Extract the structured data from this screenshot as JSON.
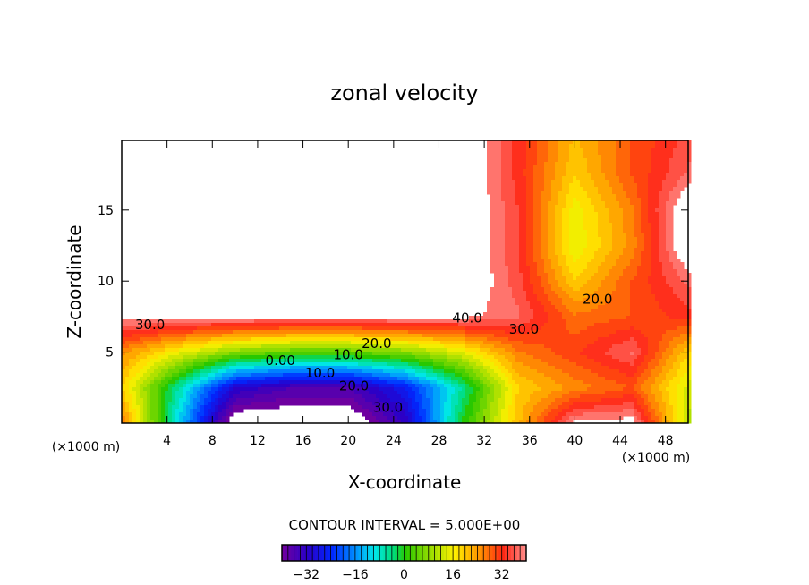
{
  "chart_data": {
    "type": "heatmap",
    "title": "zonal velocity",
    "xlabel": "X-coordinate",
    "ylabel": "Z-coordinate",
    "x_unit_left": "(×1000 m)",
    "x_unit_right": "(×1000 m)",
    "xlim": [
      0,
      50
    ],
    "ylim": [
      0,
      19.9
    ],
    "xticks": [
      4,
      8,
      12,
      16,
      20,
      24,
      28,
      32,
      36,
      40,
      44,
      48
    ],
    "yticks": [
      5,
      10,
      15
    ],
    "contour_interval_label": "CONTOUR INTERVAL = 5.000E+00",
    "colorbar": {
      "range": [
        -40,
        40
      ],
      "ticks": [
        -32,
        -16,
        0,
        16,
        32
      ],
      "tick_labels": [
        "−32",
        "−16",
        "0",
        "16",
        "32"
      ]
    },
    "grid_x": [
      0,
      5,
      10,
      15,
      20,
      25,
      30,
      35,
      40,
      45,
      50
    ],
    "grid_z": [
      0,
      2.5,
      5,
      7.5,
      10,
      12.5,
      15,
      17.5,
      20
    ],
    "values": [
      [
        28,
        -10,
        -45,
        -45,
        -45,
        -32,
        0,
        22,
        41,
        42,
        12
      ],
      [
        20,
        -5,
        -30,
        -35,
        -35,
        -25,
        -5,
        20,
        26,
        30,
        14
      ],
      [
        26,
        16,
        8,
        5,
        5,
        8,
        15,
        27,
        32,
        38,
        20
      ],
      [
        42,
        42,
        42,
        42,
        42,
        42,
        41,
        38,
        28,
        30,
        34
      ],
      [
        45,
        45,
        45,
        45,
        45,
        45,
        45,
        36,
        20,
        30,
        38
      ],
      [
        45,
        45,
        45,
        45,
        45,
        45,
        45,
        35,
        15,
        26,
        45
      ],
      [
        45,
        45,
        45,
        45,
        45,
        45,
        45,
        35,
        16,
        27,
        45
      ],
      [
        45,
        45,
        45,
        45,
        45,
        45,
        45,
        34,
        20,
        30,
        38
      ],
      [
        45,
        45,
        45,
        45,
        45,
        45,
        45,
        34,
        22,
        30,
        36
      ]
    ],
    "annotations": [
      {
        "text": "30.0",
        "x": 2.5,
        "z": 6.6
      },
      {
        "text": "40.0",
        "x": 30.5,
        "z": 7.1
      },
      {
        "text": "30.0",
        "x": 35.5,
        "z": 6.3
      },
      {
        "text": "20.0",
        "x": 42,
        "z": 8.4
      },
      {
        "text": "20.0",
        "x": 22.5,
        "z": 5.3
      },
      {
        "text": "10.0",
        "x": 20,
        "z": 4.5
      },
      {
        "text": "0.00",
        "x": 14,
        "z": 4.1
      },
      {
        "text": "10.0",
        "x": 17.5,
        "z": 3.2
      },
      {
        "text": "20.0",
        "x": 20.5,
        "z": 2.3
      },
      {
        "text": "30.0",
        "x": 23.5,
        "z": 0.8
      }
    ]
  }
}
